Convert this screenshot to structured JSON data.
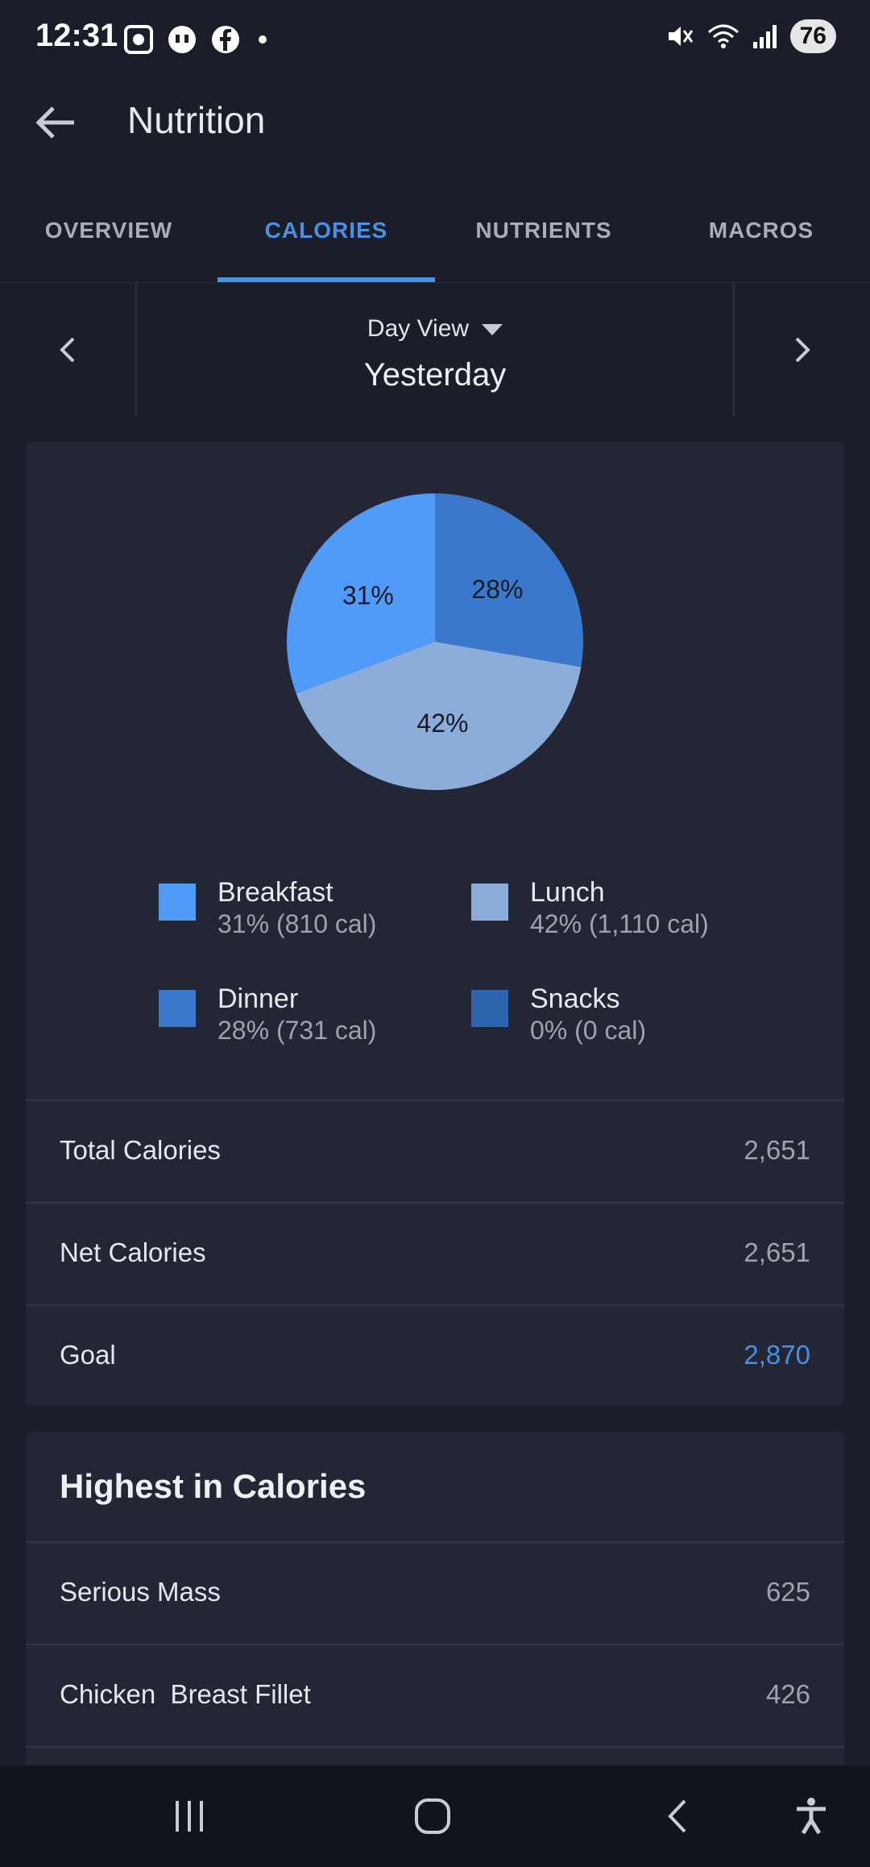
{
  "status": {
    "time": "12:31",
    "battery": "76"
  },
  "header": {
    "title": "Nutrition"
  },
  "tabs": [
    {
      "label": "OVERVIEW",
      "active": false
    },
    {
      "label": "CALORIES",
      "active": true
    },
    {
      "label": "NUTRIENTS",
      "active": false
    },
    {
      "label": "MACROS",
      "active": false
    }
  ],
  "day_nav": {
    "view_label": "Day View",
    "day": "Yesterday"
  },
  "chart_data": {
    "type": "pie",
    "slices": [
      {
        "name": "Dinner",
        "percent": 28,
        "label": "28%",
        "color": "#3a78cc"
      },
      {
        "name": "Lunch",
        "percent": 42,
        "label": "42%",
        "color": "#8cadd9"
      },
      {
        "name": "Breakfast",
        "percent": 31,
        "label": "31%",
        "color": "#4f9bf7"
      }
    ]
  },
  "legend": [
    {
      "name": "Breakfast",
      "value": "31% (810 cal)",
      "color": "#4f9bf7"
    },
    {
      "name": "Lunch",
      "value": "42% (1,110 cal)",
      "color": "#8cadd9"
    },
    {
      "name": "Dinner",
      "value": "28% (731 cal)",
      "color": "#3a78cc"
    },
    {
      "name": "Snacks",
      "value": "0% (0 cal)",
      "color": "#2e63ad"
    }
  ],
  "summary": [
    {
      "label": "Total Calories",
      "value": "2,651"
    },
    {
      "label": "Net Calories",
      "value": "2,651"
    },
    {
      "label": "Goal",
      "value": "2,870"
    }
  ],
  "highest": {
    "heading": "Highest in Calories",
    "items": [
      {
        "name": "Serious Mass",
        "value": "625"
      },
      {
        "name": "Chicken  Breast Fillet",
        "value": "426"
      }
    ]
  }
}
